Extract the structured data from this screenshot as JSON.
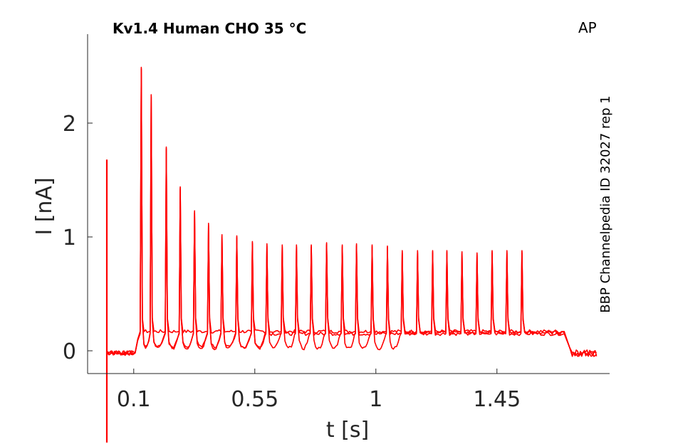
{
  "chart_data": {
    "type": "line",
    "title": "Kv1.4  Human  CHO  35 °C",
    "corner_label": "AP",
    "side_label": "BBP Channelpedia ID 32027 rep 1",
    "xlabel": "t [s]",
    "ylabel": "I [nA]",
    "xlim": [
      -0.07,
      1.86
    ],
    "ylim": [
      -0.2,
      2.8
    ],
    "x_ticks": [
      {
        "value": 0.1,
        "label": "0.1"
      },
      {
        "value": 0.55,
        "label": "0.55"
      },
      {
        "value": 1,
        "label": "1"
      },
      {
        "value": 1.45,
        "label": "1.45"
      }
    ],
    "y_ticks": [
      {
        "value": 0,
        "label": "0"
      },
      {
        "value": 1,
        "label": "1"
      },
      {
        "value": 2,
        "label": "2"
      }
    ],
    "color": "#ff0000",
    "grid": false,
    "stimulus": {
      "start": 0.1,
      "end": 1.7,
      "artifact_time": 0.0,
      "artifact_peak": 1.68,
      "artifact_min": -0.85,
      "baseline": -0.02,
      "end_baseline": -0.02
    },
    "spikes": [
      {
        "t": 0.128,
        "peak": 2.49
      },
      {
        "t": 0.165,
        "peak": 2.25
      },
      {
        "t": 0.221,
        "peak": 1.79
      },
      {
        "t": 0.273,
        "peak": 1.44
      },
      {
        "t": 0.326,
        "peak": 1.23
      },
      {
        "t": 0.378,
        "peak": 1.12
      },
      {
        "t": 0.428,
        "peak": 1.02
      },
      {
        "t": 0.483,
        "peak": 1.01
      },
      {
        "t": 0.541,
        "peak": 0.96
      },
      {
        "t": 0.595,
        "peak": 0.94
      },
      {
        "t": 0.652,
        "peak": 0.93
      },
      {
        "t": 0.705,
        "peak": 0.93
      },
      {
        "t": 0.76,
        "peak": 0.93
      },
      {
        "t": 0.817,
        "peak": 0.95
      },
      {
        "t": 0.875,
        "peak": 0.93
      },
      {
        "t": 0.928,
        "peak": 0.94
      },
      {
        "t": 0.986,
        "peak": 0.93
      },
      {
        "t": 1.043,
        "peak": 0.92
      },
      {
        "t": 1.098,
        "peak": 0.88
      },
      {
        "t": 1.155,
        "peak": 0.88
      },
      {
        "t": 1.211,
        "peak": 0.88
      },
      {
        "t": 1.264,
        "peak": 0.88
      },
      {
        "t": 1.32,
        "peak": 0.87
      },
      {
        "t": 1.376,
        "peak": 0.86
      },
      {
        "t": 1.432,
        "peak": 0.88
      },
      {
        "t": 1.487,
        "peak": 0.88
      },
      {
        "t": 1.543,
        "peak": 0.88
      }
    ],
    "sweeps": [
      {
        "plateau": 0.17,
        "dip_depth": 0.0,
        "dip_until": 0.0
      },
      {
        "plateau": 0.15,
        "dip_depth": 0.12,
        "dip_until": 0.56
      },
      {
        "plateau": 0.16,
        "dip_depth": 0.14,
        "dip_until": 1.09
      }
    ]
  }
}
